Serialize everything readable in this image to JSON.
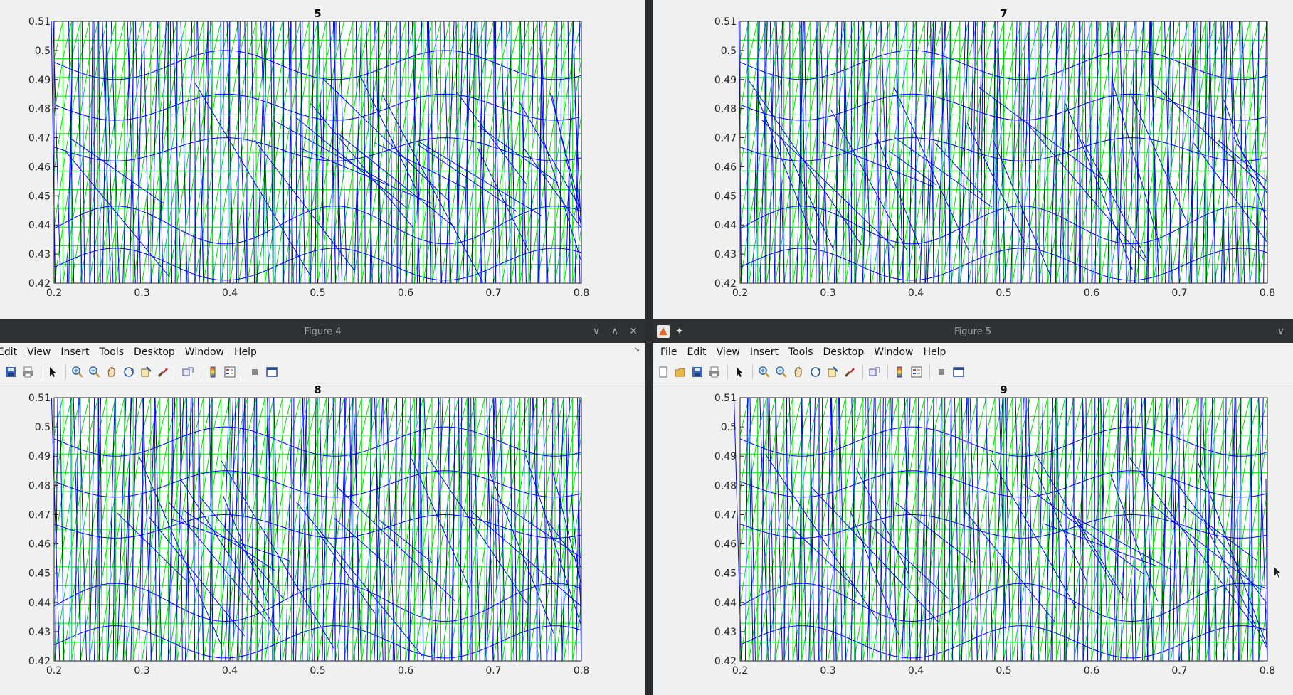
{
  "windows": [
    {
      "id": "tl",
      "window_title": "",
      "axes_title": "5",
      "has_titlebar": false,
      "seed": 11
    },
    {
      "id": "tr",
      "window_title": "",
      "axes_title": "7",
      "has_titlebar": false,
      "seed": 23
    },
    {
      "id": "bl",
      "window_title": "Figure 4",
      "axes_title": "8",
      "has_titlebar": true,
      "seed": 37
    },
    {
      "id": "br",
      "window_title": "Figure 5",
      "axes_title": "9",
      "has_titlebar": true,
      "seed": 53
    }
  ],
  "menu_left": [
    "Edit",
    "View",
    "Insert",
    "Tools",
    "Desktop",
    "Window",
    "Help"
  ],
  "menu_right": [
    "File",
    "Edit",
    "View",
    "Insert",
    "Tools",
    "Desktop",
    "Window",
    "Help"
  ],
  "toolbar_icons_left": [
    "save-icon",
    "print-icon",
    "pointer-icon",
    "zoom-in-icon",
    "zoom-out-icon",
    "pan-icon",
    "rotate-icon",
    "data-cursor-icon",
    "brush-icon",
    "link-icon",
    "colorbar-icon",
    "legend-icon",
    "hide-tools-icon",
    "dock-icon"
  ],
  "toolbar_icons_right": [
    "new-figure-icon",
    "open-icon",
    "save-icon",
    "print-icon",
    "pointer-icon",
    "zoom-in-icon",
    "zoom-out-icon",
    "pan-icon",
    "rotate-icon",
    "data-cursor-icon",
    "brush-icon",
    "link-icon",
    "colorbar-icon",
    "legend-icon",
    "hide-tools-icon",
    "dock-icon"
  ],
  "colors": {
    "mesh_green": "#00e000",
    "mesh_blue": "#0000ff",
    "axes_bg": "#ffffff",
    "figure_bg": "#f0f0f0"
  },
  "chart_data": [
    {
      "type": "line",
      "title": "5",
      "xlim": [
        0.2,
        0.8
      ],
      "ylim": [
        0.42,
        0.51
      ],
      "xticks": [
        "0.2",
        "0.3",
        "0.4",
        "0.5",
        "0.6",
        "0.7",
        "0.8"
      ],
      "yticks": [
        "0.42",
        "0.43",
        "0.44",
        "0.45",
        "0.46",
        "0.47",
        "0.48",
        "0.49",
        "0.5",
        "0.51"
      ],
      "series": [
        {
          "values": [
            0.4465,
            0.4465,
            0.43,
            0.42,
            0.442,
            0.442,
            0.42,
            0.43,
            0.4465,
            0.4465
          ],
          "x": [
            0.2,
            0.27,
            0.33,
            0.39,
            0.47,
            0.53,
            0.62,
            0.68,
            0.73,
            0.8
          ]
        }
      ]
    },
    {
      "type": "line",
      "title": "7",
      "xlim": [
        0.2,
        0.8
      ],
      "ylim": [
        0.42,
        0.51
      ],
      "xticks": [
        "0.2",
        "0.3",
        "0.4",
        "0.5",
        "0.6",
        "0.7",
        "0.8"
      ],
      "yticks": [
        "0.42",
        "0.43",
        "0.44",
        "0.45",
        "0.46",
        "0.47",
        "0.48",
        "0.49",
        "0.5",
        "0.51"
      ]
    },
    {
      "type": "line",
      "title": "8",
      "xlim": [
        0.2,
        0.8
      ],
      "ylim": [
        0.42,
        0.51
      ],
      "xticks": [
        "0.2",
        "0.3",
        "0.4",
        "0.5",
        "0.6",
        "0.7",
        "0.8"
      ],
      "yticks": [
        "0.42",
        "0.43",
        "0.44",
        "0.45",
        "0.46",
        "0.47",
        "0.48",
        "0.49",
        "0.5",
        "0.51"
      ]
    },
    {
      "type": "line",
      "title": "9",
      "xlim": [
        0.2,
        0.8
      ],
      "ylim": [
        0.42,
        0.51
      ],
      "xticks": [
        "0.2",
        "0.3",
        "0.4",
        "0.5",
        "0.6",
        "0.7",
        "0.8"
      ],
      "yticks": [
        "0.42",
        "0.43",
        "0.44",
        "0.45",
        "0.46",
        "0.47",
        "0.48",
        "0.49",
        "0.5",
        "0.51"
      ]
    }
  ]
}
